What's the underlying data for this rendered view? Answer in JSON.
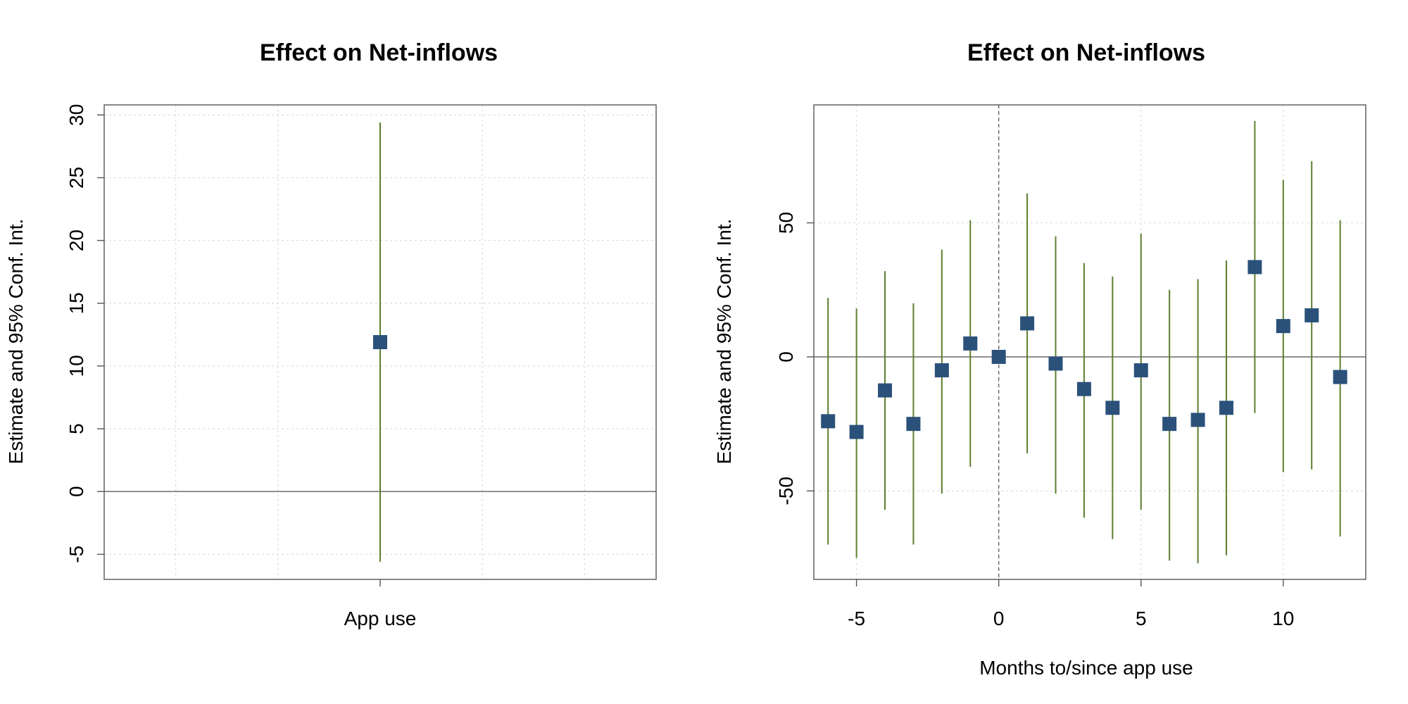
{
  "colors": {
    "marker": "#2b517a",
    "ci": "#5b7f2e",
    "zero_line": "#777777",
    "grid": "#dddddd",
    "frame": "#555555",
    "vline": "#666666"
  },
  "chart_data": [
    {
      "type": "scatter",
      "title": "Effect on Net-inflows",
      "xlabel": "",
      "ylabel": "Estimate and 95% Conf. Int.",
      "categories": [
        "App use"
      ],
      "xlim": [
        0.325,
        1.675
      ],
      "ylim": [
        -7,
        30.8
      ],
      "yticks": [
        -5,
        0,
        5,
        10,
        15,
        20,
        25,
        30
      ],
      "ytick_labels": [
        "-5",
        "0",
        "5",
        "10",
        "15",
        "20",
        "25",
        "30"
      ],
      "xgrid": [
        0.5,
        0.75,
        1.25,
        1.5
      ],
      "grid": true,
      "zero_line": true,
      "points": [
        {
          "x": 1,
          "label": "App use",
          "estimate": 11.9,
          "ci_low": -5.6,
          "ci_high": 29.4
        }
      ]
    },
    {
      "type": "scatter",
      "title": "Effect on Net-inflows",
      "xlabel": "Months to/since app use",
      "ylabel": "Estimate and 95% Conf. Int.",
      "xlim": [
        -6.5,
        12.9
      ],
      "ylim": [
        -83,
        94
      ],
      "xticks": [
        -5,
        0,
        5,
        10
      ],
      "xtick_labels": [
        "-5",
        "0",
        "5",
        "10"
      ],
      "yticks": [
        -50,
        0,
        50
      ],
      "ytick_labels": [
        "-50",
        "0",
        "50"
      ],
      "xgrid": [
        -5,
        0,
        5,
        10
      ],
      "ygrid": [
        -50,
        0,
        50
      ],
      "grid": true,
      "zero_line": true,
      "vline_x": 0,
      "points": [
        {
          "x": -6,
          "estimate": -24,
          "ci_low": -70,
          "ci_high": 22
        },
        {
          "x": -5,
          "estimate": -28,
          "ci_low": -75,
          "ci_high": 18
        },
        {
          "x": -4,
          "estimate": -12.5,
          "ci_low": -57,
          "ci_high": 32
        },
        {
          "x": -3,
          "estimate": -25,
          "ci_low": -70,
          "ci_high": 20
        },
        {
          "x": -2,
          "estimate": -5,
          "ci_low": -51,
          "ci_high": 40
        },
        {
          "x": -1,
          "estimate": 5,
          "ci_low": -41,
          "ci_high": 51
        },
        {
          "x": 0,
          "estimate": 0,
          "ci_low": 0,
          "ci_high": 0
        },
        {
          "x": 1,
          "estimate": 12.5,
          "ci_low": -36,
          "ci_high": 61
        },
        {
          "x": 2,
          "estimate": -2.5,
          "ci_low": -51,
          "ci_high": 45
        },
        {
          "x": 3,
          "estimate": -12,
          "ci_low": -60,
          "ci_high": 35
        },
        {
          "x": 4,
          "estimate": -19,
          "ci_low": -68,
          "ci_high": 30
        },
        {
          "x": 5,
          "estimate": -5,
          "ci_low": -57,
          "ci_high": 46
        },
        {
          "x": 6,
          "estimate": -25,
          "ci_low": -76,
          "ci_high": 25
        },
        {
          "x": 7,
          "estimate": -23.5,
          "ci_low": -77,
          "ci_high": 29
        },
        {
          "x": 8,
          "estimate": -19,
          "ci_low": -74,
          "ci_high": 36
        },
        {
          "x": 9,
          "estimate": 33.5,
          "ci_low": -21,
          "ci_high": 88
        },
        {
          "x": 10,
          "estimate": 11.5,
          "ci_low": -43,
          "ci_high": 66
        },
        {
          "x": 11,
          "estimate": 15.5,
          "ci_low": -42,
          "ci_high": 73
        },
        {
          "x": 12,
          "estimate": -7.5,
          "ci_low": -67,
          "ci_high": 51
        }
      ]
    }
  ]
}
